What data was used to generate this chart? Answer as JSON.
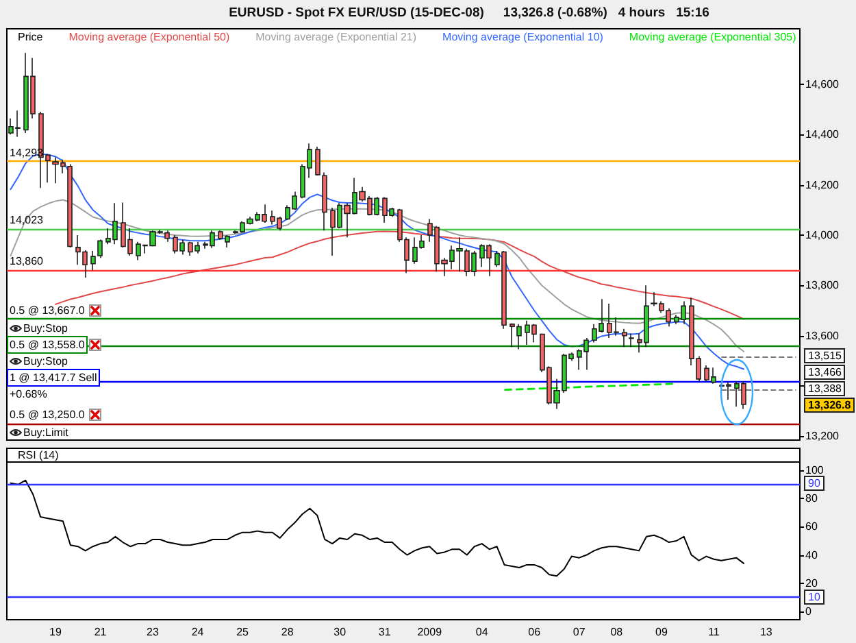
{
  "chart_data": [
    {
      "type": "candlestick",
      "title": "EURUSD - Spot FX EUR/USD (15-DEC-08)",
      "subtitle": "13,326.8 (-0.68%)   4 hours   15:16",
      "categories": [
        null,
        null,
        null,
        null,
        null,
        null,
        "19",
        null,
        null,
        null,
        null,
        null,
        "21",
        null,
        null,
        null,
        null,
        null,
        null,
        "23",
        null,
        null,
        null,
        null,
        null,
        "24",
        null,
        null,
        null,
        null,
        null,
        "25",
        null,
        null,
        null,
        null,
        null,
        "28",
        null,
        null,
        null,
        null,
        null,
        null,
        "30",
        null,
        null,
        null,
        null,
        null,
        "31",
        null,
        null,
        null,
        null,
        null,
        "2009",
        null,
        null,
        null,
        null,
        null,
        null,
        "04",
        null,
        null,
        null,
        null,
        null,
        null,
        "06",
        null,
        null,
        null,
        null,
        null,
        "07",
        null,
        null,
        null,
        null,
        "08",
        null,
        null,
        null,
        null,
        null,
        "09",
        null,
        null,
        null,
        null,
        null,
        null,
        "11",
        null,
        null,
        null,
        null,
        null,
        null,
        "13",
        null,
        null,
        null,
        null
      ],
      "series": [
        {
          "name": "Price",
          "ohlc": [
            [
              14406,
              14464,
              14400,
              14431
            ],
            [
              14427,
              14495,
              14391,
              14424
            ],
            [
              14418,
              14724,
              14406,
              14631
            ],
            [
              14631,
              14704,
              14464,
              14482
            ],
            [
              14482,
              14490,
              14187,
              14309
            ],
            [
              14318,
              14322,
              14209,
              14296
            ],
            [
              14291,
              14309,
              14206,
              14282
            ],
            [
              14287,
              14300,
              14246,
              14273
            ],
            [
              14273,
              14282,
              13951,
              13955
            ],
            [
              13951,
              14000,
              13882,
              13933
            ],
            [
              13933,
              13940,
              13831,
              13882
            ],
            [
              13886,
              13937,
              13860,
              13915
            ],
            [
              13918,
              13982,
              13909,
              13977
            ],
            [
              13973,
              14027,
              13964,
              13987
            ],
            [
              13982,
              14127,
              13964,
              14055
            ],
            [
              14049,
              14129,
              13951,
              13955
            ],
            [
              13982,
              14027,
              13918,
              13927
            ],
            [
              13918,
              13973,
              13900,
              13964
            ],
            [
              13958,
              13962,
              13927,
              13960
            ],
            [
              13958,
              14018,
              13955,
              14013
            ],
            [
              14011,
              14020,
              14005,
              14013
            ],
            [
              14009,
              14018,
              13973,
              13987
            ],
            [
              13991,
              14000,
              13927,
              13937
            ],
            [
              13937,
              13982,
              13922,
              13969
            ],
            [
              13969,
              13973,
              13918,
              13933
            ],
            [
              13937,
              13973,
              13927,
              13958
            ],
            [
              13960,
              13973,
              13946,
              13964
            ],
            [
              13958,
              14018,
              13949,
              14009
            ],
            [
              14013,
              14018,
              13982,
              13987
            ],
            [
              13973,
              14000,
              13951,
              13995
            ],
            [
              14010,
              14018,
              14005,
              14013
            ],
            [
              14013,
              14055,
              14009,
              14049
            ],
            [
              14046,
              14073,
              14042,
              14064
            ],
            [
              14060,
              14091,
              14055,
              14082
            ],
            [
              14082,
              14122,
              14049,
              14055
            ],
            [
              14073,
              14097,
              14042,
              14055
            ],
            [
              14067,
              14073,
              14018,
              14027
            ],
            [
              14064,
              14118,
              14060,
              14109
            ],
            [
              14104,
              14173,
              14100,
              14155
            ],
            [
              14151,
              14282,
              14146,
              14273
            ],
            [
              14267,
              14364,
              14227,
              14340
            ],
            [
              14340,
              14351,
              14237,
              14240
            ],
            [
              14236,
              14249,
              14018,
              14091
            ],
            [
              14097,
              14109,
              13918,
              14031
            ],
            [
              14031,
              14127,
              14027,
              14118
            ],
            [
              14118,
              14127,
              13991,
              14086
            ],
            [
              14086,
              14227,
              14082,
              14169
            ],
            [
              14173,
              14191,
              14133,
              14140
            ],
            [
              14146,
              14155,
              14078,
              14082
            ],
            [
              14082,
              14151,
              14078,
              14146
            ],
            [
              14146,
              14151,
              14049,
              14078
            ],
            [
              14078,
              14109,
              14073,
              14104
            ],
            [
              14100,
              14104,
              13973,
              13982
            ],
            [
              13982,
              13991,
              13849,
              13900
            ],
            [
              13896,
              13991,
              13886,
              13951
            ],
            [
              13951,
              14000,
              13946,
              13976
            ],
            [
              14046,
              14064,
              13973,
              14000
            ],
            [
              14031,
              14036,
              13855,
              13886
            ],
            [
              13900,
              13909,
              13837,
              13886
            ],
            [
              13896,
              13958,
              13864,
              13940
            ],
            [
              13937,
              13991,
              13855,
              13946
            ],
            [
              13937,
              13946,
              13837,
              13855
            ],
            [
              13855,
              13937,
              13837,
              13928
            ],
            [
              13909,
              13964,
              13873,
              13958
            ],
            [
              13958,
              13964,
              13837,
              13909
            ],
            [
              13882,
              13937,
              13873,
              13927
            ],
            [
              13933,
              13937,
              13627,
              13642
            ],
            [
              13646,
              13649,
              13555,
              13637
            ],
            [
              13600,
              13646,
              13546,
              13636
            ],
            [
              13613,
              13660,
              13564,
              13642
            ],
            [
              13642,
              13646,
              13573,
              13606
            ],
            [
              13606,
              13609,
              13455,
              13464
            ],
            [
              13473,
              13478,
              13327,
              13333
            ],
            [
              13333,
              13428,
              13309,
              13382
            ],
            [
              13382,
              13528,
              13373,
              13522
            ],
            [
              13509,
              13533,
              13500,
              13527
            ],
            [
              13515,
              13546,
              13464,
              13540
            ],
            [
              13537,
              13591,
              13464,
              13582
            ],
            [
              13582,
              13646,
              13573,
              13627
            ],
            [
              13618,
              13746,
              13613,
              13649
            ],
            [
              13649,
              13727,
              13591,
              13613
            ],
            [
              13613,
              13673,
              13600,
              13615
            ],
            [
              13613,
              13627,
              13555,
              13600
            ],
            [
              13591,
              13609,
              13555,
              13589
            ],
            [
              13584,
              13609,
              13533,
              13573
            ],
            [
              13573,
              13800,
              13555,
              13718
            ],
            [
              13727,
              13773,
              13718,
              13729
            ],
            [
              13727,
              13737,
              13691,
              13700
            ],
            [
              13700,
              13709,
              13637,
              13655
            ],
            [
              13655,
              13682,
              13646,
              13673
            ],
            [
              13664,
              13737,
              13646,
              13718
            ],
            [
              13718,
              13751,
              13482,
              13509
            ],
            [
              13509,
              13518,
              13418,
              13428
            ],
            [
              13470,
              13482,
              13418,
              13425
            ],
            [
              13415,
              13473,
              13409,
              13436
            ],
            [
              13400,
              13409,
              13373,
              13402
            ],
            [
              13400,
              13418,
              13346,
              13405
            ],
            [
              13391,
              13418,
              13318,
              13409
            ],
            [
              13409,
              13418,
              13309,
              13326.8
            ],
            null,
            null,
            null,
            null,
            null,
            null,
            null
          ],
          "colors": [
            "#33cc33",
            "#ee6666",
            "#33cc33",
            "#ee6666",
            "#ee6666",
            "#ee6666",
            "#ee6666",
            "#ee6666",
            "#ee6666",
            "#ee6666",
            "#ee6666",
            "#33cc33",
            "#33cc33",
            "#33cc33",
            "#33cc33",
            "#ee6666",
            "#ee6666",
            "#33cc33",
            "#33cc33",
            "#33cc33",
            "#33cc33",
            "#ee6666",
            "#ee6666",
            "#33cc33",
            "#ee6666",
            "#33cc33",
            "#33cc33",
            "#33cc33",
            "#ee6666",
            "#33cc33",
            "#33cc33",
            "#33cc33",
            "#33cc33",
            "#33cc33",
            "#ee6666",
            "#ee6666",
            "#ee6666",
            "#33cc33",
            "#33cc33",
            "#33cc33",
            "#33cc33",
            "#ee6666",
            "#ee6666",
            "#ee6666",
            "#33cc33",
            "#ee6666",
            "#33cc33",
            "#ee6666",
            "#ee6666",
            "#33cc33",
            "#ee6666",
            "#33cc33",
            "#ee6666",
            "#ee6666",
            "#33cc33",
            "#33cc33",
            "#ee6666",
            "#ee6666",
            "#ee6666",
            "#33cc33",
            "#33cc33",
            "#ee6666",
            "#33cc33",
            "#33cc33",
            "#ee6666",
            "#33cc33",
            "#ee6666",
            "#ee6666",
            "#33cc33",
            "#33cc33",
            "#ee6666",
            "#ee6666",
            "#ee6666",
            "#33cc33",
            "#33cc33",
            "#33cc33",
            "#33cc33",
            "#33cc33",
            "#33cc33",
            "#33cc33",
            "#ee6666",
            "#33cc33",
            "#ee6666",
            "#ee6666",
            "#ee6666",
            "#33cc33",
            "#33cc33",
            "#ee6666",
            "#ee6666",
            "#33cc33",
            "#33cc33",
            "#ee6666",
            "#ee6666",
            "#ee6666",
            "#33cc33",
            "#33cc33",
            "#33cc33",
            "#33cc33",
            "#ee6666",
            null,
            null,
            null,
            null,
            null,
            null,
            null
          ],
          "value_labels": [
            null,
            null,
            null,
            null,
            null,
            null,
            null,
            null,
            null,
            null,
            null,
            null,
            null,
            null,
            null,
            null,
            null,
            null,
            null,
            null,
            null,
            null,
            null,
            null,
            null,
            null,
            null,
            null,
            null,
            null,
            null,
            null,
            null,
            null,
            null,
            null,
            null,
            null,
            null,
            null,
            null,
            null,
            null,
            null,
            null,
            null,
            null,
            null,
            null,
            null,
            null,
            null,
            null,
            null,
            null,
            null,
            null,
            null,
            null,
            null,
            null,
            null,
            null,
            null,
            null,
            null,
            null,
            null,
            null,
            null,
            null,
            null,
            null,
            null,
            null,
            null,
            null,
            null,
            null,
            null,
            null,
            null,
            null,
            null,
            null,
            null,
            null,
            null,
            null,
            null,
            null,
            null,
            null,
            null,
            null,
            null,
            null,
            null,
            "13,326.8",
            null,
            null,
            null,
            null,
            null,
            null,
            null
          ]
        },
        {
          "type": "line",
          "name": "Moving average (Exponential 50)",
          "color": "#e04848",
          "values": [
            null,
            null,
            null,
            null,
            null,
            null,
            13725,
            13735,
            13745,
            13752,
            13760,
            13768,
            13775,
            13781,
            13787,
            13793,
            13800,
            13806,
            13812,
            13818,
            13825,
            13831,
            13838,
            13846,
            13851,
            13856,
            13862,
            13867,
            13872,
            13877,
            13882,
            13889,
            13896,
            13903,
            13910,
            13912,
            13922,
            13932,
            13945,
            13957,
            13968,
            13975,
            13984,
            13990,
            13996,
            14000,
            14004,
            14008,
            14011,
            14014,
            14015,
            14014,
            14013,
            14010,
            14006,
            14003,
            14000,
            13995,
            13992,
            13988,
            13987,
            13987,
            13986,
            13985,
            13982,
            13978,
            13972,
            13957,
            13942,
            13928,
            13915,
            13895,
            13878,
            13866,
            13855,
            13843,
            13832,
            13824,
            13815,
            13805,
            13800,
            13793,
            13788,
            13782,
            13776,
            13771,
            13766,
            13762,
            13758,
            13756,
            13752,
            13748,
            13739,
            13728,
            13716,
            13705,
            13693,
            13680,
            13666,
            null,
            null,
            null,
            null,
            null,
            null,
            null
          ]
        },
        {
          "type": "line",
          "name": "Moving average (Exponential 21)",
          "color": "#a0a0a0",
          "values": [
            13918,
            13990,
            14060,
            14095,
            14112,
            14125,
            14135,
            14140,
            14130,
            14112,
            14092,
            14072,
            14063,
            14056,
            14050,
            14045,
            14036,
            14027,
            14018,
            14012,
            14007,
            14003,
            14000,
            13998,
            13996,
            13995,
            13996,
            13997,
            13998,
            14000,
            14004,
            14008,
            14013,
            14018,
            14023,
            14030,
            14034,
            14040,
            14060,
            14080,
            14092,
            14100,
            14101,
            14102,
            14103,
            14104,
            14104,
            14104,
            14103,
            14101,
            14099,
            14092,
            14080,
            14066,
            14055,
            14046,
            14038,
            14027,
            14018,
            14008,
            14000,
            13994,
            13990,
            13986,
            13982,
            13976,
            13965,
            13940,
            13910,
            13870,
            13835,
            13800,
            13775,
            13750,
            13725,
            13705,
            13690,
            13675,
            13667,
            13662,
            13658,
            13655,
            13652,
            13650,
            13649,
            13655,
            13665,
            13673,
            13682,
            13690,
            13691,
            13688,
            13675,
            13662,
            13645,
            13625,
            13595,
            13560,
            13537,
            null,
            null,
            null,
            null,
            null,
            null,
            null
          ]
        },
        {
          "type": "line",
          "name": "Moving average (Exponential 10)",
          "color": "#3366ff",
          "values": [
            14182,
            14230,
            14285,
            14315,
            14322,
            14320,
            14312,
            14295,
            14240,
            14195,
            14140,
            14100,
            14075,
            14046,
            14035,
            14027,
            14015,
            14009,
            14003,
            14000,
            13994,
            13990,
            13984,
            13981,
            13978,
            13977,
            13977,
            13980,
            13984,
            13988,
            13995,
            14004,
            14013,
            14022,
            14030,
            14035,
            14046,
            14064,
            14090,
            14125,
            14150,
            14162,
            14150,
            14138,
            14130,
            14128,
            14128,
            14126,
            14124,
            14120,
            14105,
            14090,
            14070,
            14040,
            14020,
            14010,
            14000,
            13995,
            13985,
            13975,
            13968,
            13958,
            13950,
            13942,
            13937,
            13933,
            13900,
            13835,
            13790,
            13745,
            13700,
            13660,
            13620,
            13585,
            13564,
            13557,
            13560,
            13570,
            13585,
            13598,
            13604,
            13608,
            13607,
            13606,
            13608,
            13630,
            13640,
            13647,
            13651,
            13655,
            13655,
            13630,
            13595,
            13557,
            13530,
            13505,
            13486,
            13478,
            13467,
            null,
            null,
            null,
            null,
            null,
            null,
            null
          ]
        },
        {
          "type": "line",
          "name": "Moving average (Exponential 305)",
          "color": "#00e600",
          "line_style": "dashed",
          "values": [
            null,
            null,
            null,
            null,
            null,
            null,
            null,
            null,
            null,
            null,
            null,
            null,
            null,
            null,
            null,
            null,
            null,
            null,
            null,
            null,
            null,
            null,
            null,
            null,
            null,
            null,
            null,
            null,
            null,
            null,
            null,
            null,
            null,
            null,
            null,
            null,
            null,
            null,
            null,
            null,
            null,
            null,
            null,
            null,
            null,
            null,
            null,
            null,
            null,
            null,
            null,
            null,
            null,
            null,
            null,
            null,
            null,
            null,
            null,
            null,
            null,
            null,
            null,
            null,
            null,
            null,
            13385,
            13386,
            13387,
            13388,
            13389,
            13390,
            13391,
            13392,
            13393,
            13394,
            13396,
            13397,
            13398,
            13399,
            13400,
            13401,
            13402,
            13403,
            13404,
            13405,
            13406,
            13407,
            13408,
            13409,
            null,
            null,
            null,
            null,
            null,
            null,
            null,
            null,
            null,
            null,
            null,
            null,
            null,
            null,
            null,
            null
          ]
        }
      ],
      "ylim": [
        13185,
        14820
      ],
      "yticks": [
        {
          "value": 13200,
          "label": "13,200"
        },
        {
          "value": 13400,
          "label": null
        },
        {
          "value": 13600,
          "label": "13,600"
        },
        {
          "value": 13800,
          "label": "13,800"
        },
        {
          "value": 14000,
          "label": "14,000"
        },
        {
          "value": 14200,
          "label": "14,200"
        },
        {
          "value": 14400,
          "label": "14,400"
        },
        {
          "value": 14600,
          "label": "14,600"
        }
      ],
      "ref_lines": [
        {
          "axis": "y",
          "value": 14293,
          "label": "14,293",
          "color": "#ffaa00"
        },
        {
          "axis": "y",
          "value": 14023,
          "label": "14,023",
          "color": "#44cc44"
        },
        {
          "axis": "y",
          "value": 13860,
          "label": "13,860",
          "color": "#ff3333"
        },
        {
          "axis": "y",
          "value": 13667,
          "label": "0.5 @ 13,667.0",
          "color": "#008800"
        },
        {
          "axis": "y",
          "value": 13558,
          "label": "0.5 @ 13,558.0",
          "color": "#008800"
        },
        {
          "axis": "y",
          "value": 13417.7,
          "label": "1 @ 13,417.7 Sell",
          "color": "#0000ff"
        },
        {
          "axis": "y",
          "value": 13250,
          "label": "0.5 @ 13,250.0",
          "color": "#aa0000"
        }
      ],
      "annotations": [
        {
          "text": "Buy:Stop",
          "y": 13667
        },
        {
          "text": "Buy:Stop",
          "y": 13558
        },
        {
          "text": "+0.68%",
          "y": 13417.7
        },
        {
          "text": "Buy:Limit",
          "y": 13250
        },
        {
          "text": "13,515",
          "y": 13515
        },
        "13,466",
        {
          "text": "13,388",
          "y": 13388
        }
      ],
      "legend": "top left",
      "tick_labels": "y"
    },
    {
      "type": "line",
      "categories": [
        null,
        null,
        null,
        null,
        null,
        null,
        "19",
        null,
        null,
        null,
        null,
        null,
        "21",
        null,
        null,
        null,
        null,
        null,
        null,
        "23",
        null,
        null,
        null,
        null,
        null,
        "24",
        null,
        null,
        null,
        null,
        null,
        "25",
        null,
        null,
        null,
        null,
        null,
        "28",
        null,
        null,
        null,
        null,
        null,
        null,
        "30",
        null,
        null,
        null,
        null,
        null,
        "31",
        null,
        null,
        null,
        null,
        null,
        "2009",
        null,
        null,
        null,
        null,
        null,
        null,
        "04",
        null,
        null,
        null,
        null,
        null,
        null,
        "06",
        null,
        null,
        null,
        null,
        null,
        "07",
        null,
        null,
        null,
        null,
        "08",
        null,
        null,
        null,
        null,
        null,
        "09",
        null,
        null,
        null,
        null,
        null,
        null,
        "11",
        null,
        null,
        null,
        null,
        null,
        null,
        "13",
        null,
        null,
        null,
        null
      ],
      "series": [
        {
          "name": "RSI (14)",
          "color": "#000000",
          "values": [
            91,
            90,
            93,
            83,
            67,
            66,
            65,
            64,
            47,
            46,
            43,
            46,
            48,
            49,
            53,
            49,
            46,
            48,
            48,
            51,
            51,
            49,
            48,
            47,
            47,
            48,
            49,
            51,
            51,
            51,
            54,
            56,
            56,
            57,
            56,
            56,
            52,
            58,
            63,
            69,
            73,
            68,
            51,
            48,
            52,
            51,
            55,
            54,
            51,
            52,
            49,
            49,
            44,
            40,
            43,
            45,
            46,
            41,
            42,
            44,
            44,
            40,
            46,
            48,
            44,
            46,
            33,
            32,
            31,
            33,
            33,
            31,
            26,
            25,
            30,
            39,
            38,
            40,
            43,
            45,
            46,
            46,
            45,
            44,
            43,
            53,
            54,
            52,
            49,
            50,
            53,
            40,
            36,
            39,
            37,
            36,
            37,
            38,
            34,
            null,
            null,
            null,
            null,
            null,
            null,
            null
          ]
        }
      ],
      "ylim": [
        -6,
        106
      ],
      "yticks": [
        0,
        20,
        40,
        60,
        80,
        100
      ],
      "ref_lines": [
        {
          "axis": "y",
          "value": 90,
          "label": "90",
          "color": "#3333ff"
        },
        {
          "axis": "y",
          "value": 10,
          "label": "10",
          "color": "#3333ff"
        }
      ],
      "legend": "top left"
    }
  ]
}
